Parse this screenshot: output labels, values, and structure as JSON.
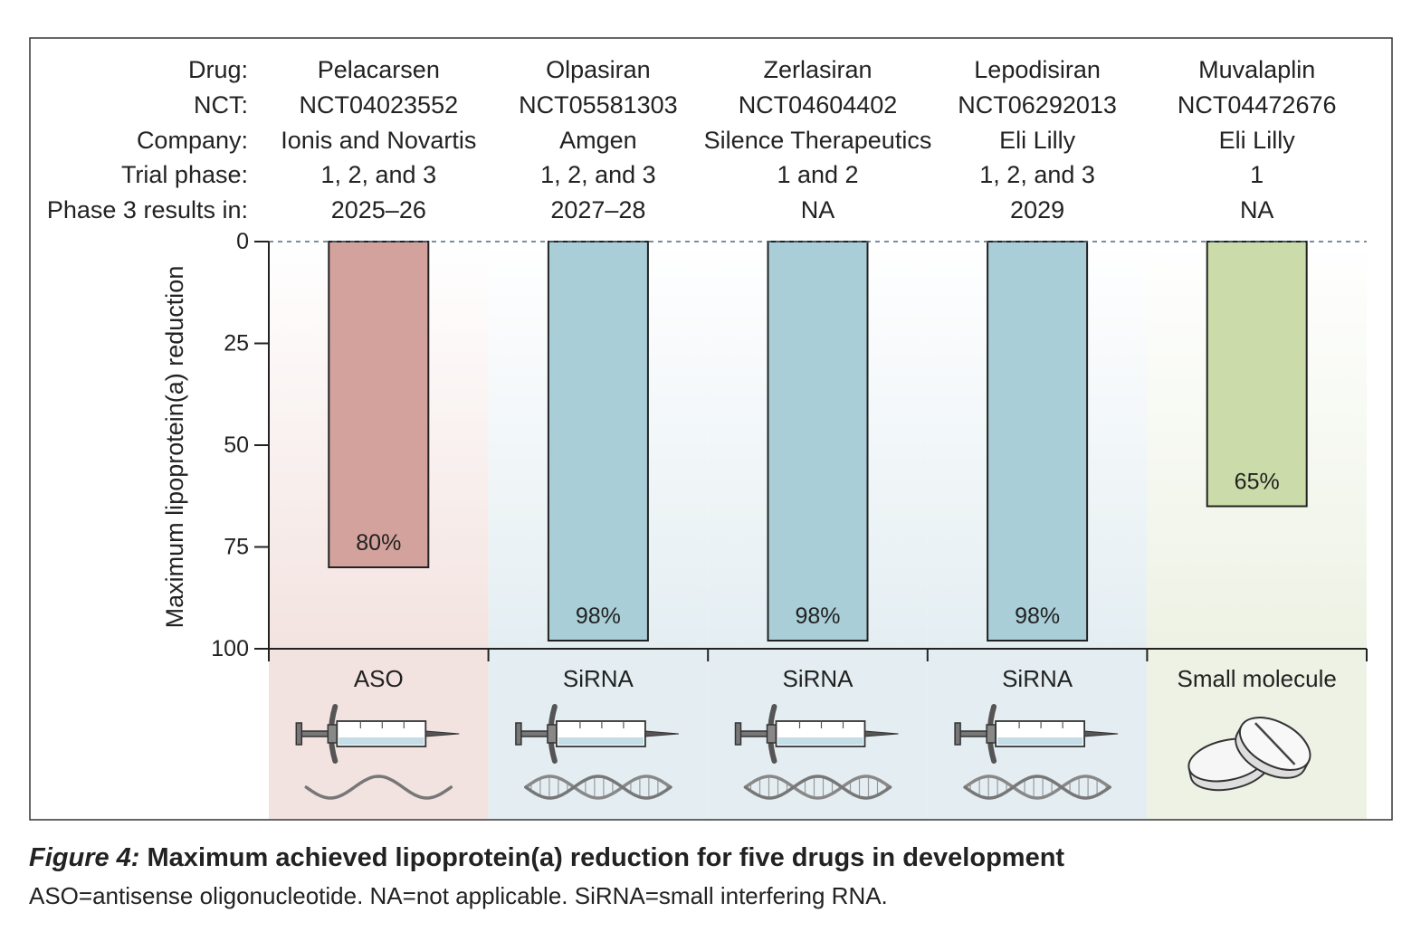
{
  "chart_data": {
    "type": "bar",
    "orientation": "vertical-downward",
    "ylabel": "Maximum lipoprotein(a) reduction",
    "ylim": [
      0,
      100
    ],
    "yticks": [
      "0",
      "25",
      "50",
      "75",
      "100"
    ],
    "row_labels": [
      "Drug:",
      "NCT:",
      "Company:",
      "Trial phase:",
      "Phase 3 results in:"
    ],
    "drugs": [
      {
        "name": "Pelacarsen",
        "nct": "NCT04023552",
        "company": "Ionis and Novartis",
        "phase": "1, 2, and 3",
        "phase3_results": "2025–26",
        "value": 80,
        "value_label": "80%",
        "class": "ASO",
        "class_color": "#f3e3e0",
        "bar_color": "#d3a29d",
        "icon": "syringe-icon",
        "molecule_icon": "single-strand-rna-icon"
      },
      {
        "name": "Olpasiran",
        "nct": "NCT05581303",
        "company": "Amgen",
        "phase": "1, 2, and 3",
        "phase3_results": "2027–28",
        "value": 98,
        "value_label": "98%",
        "class": "SiRNA",
        "class_color": "#e4eef2",
        "bar_color": "#a9ced8",
        "icon": "syringe-icon",
        "molecule_icon": "double-strand-rna-icon"
      },
      {
        "name": "Zerlasiran",
        "nct": "NCT04604402",
        "company": "Silence Therapeutics",
        "phase": "1 and 2",
        "phase3_results": "NA",
        "value": 98,
        "value_label": "98%",
        "class": "SiRNA",
        "class_color": "#e4eef2",
        "bar_color": "#a9ced8",
        "icon": "syringe-icon",
        "molecule_icon": "double-strand-rna-icon"
      },
      {
        "name": "Lepodisiran",
        "nct": "NCT06292013",
        "company": "Eli Lilly",
        "phase": "1, 2, and 3",
        "phase3_results": "2029",
        "value": 98,
        "value_label": "98%",
        "class": "SiRNA",
        "class_color": "#e4eef2",
        "bar_color": "#a9ced8",
        "icon": "syringe-icon",
        "molecule_icon": "double-strand-rna-icon"
      },
      {
        "name": "Muvalaplin",
        "nct": "NCT04472676",
        "company": "Eli Lilly",
        "phase": "1",
        "phase3_results": "NA",
        "value": 65,
        "value_label": "65%",
        "class": "Small molecule",
        "class_color": "#edf2e4",
        "bar_color": "#cbdcaa",
        "icon": "pill-icon",
        "molecule_icon": ""
      }
    ]
  },
  "caption": {
    "label": "Figure 4:",
    "title": " Maximum achieved lipoprotein(a) reduction for five drugs in development",
    "note": "ASO=antisense oligonucleotide. NA=not applicable. SiRNA=small interfering RNA."
  }
}
